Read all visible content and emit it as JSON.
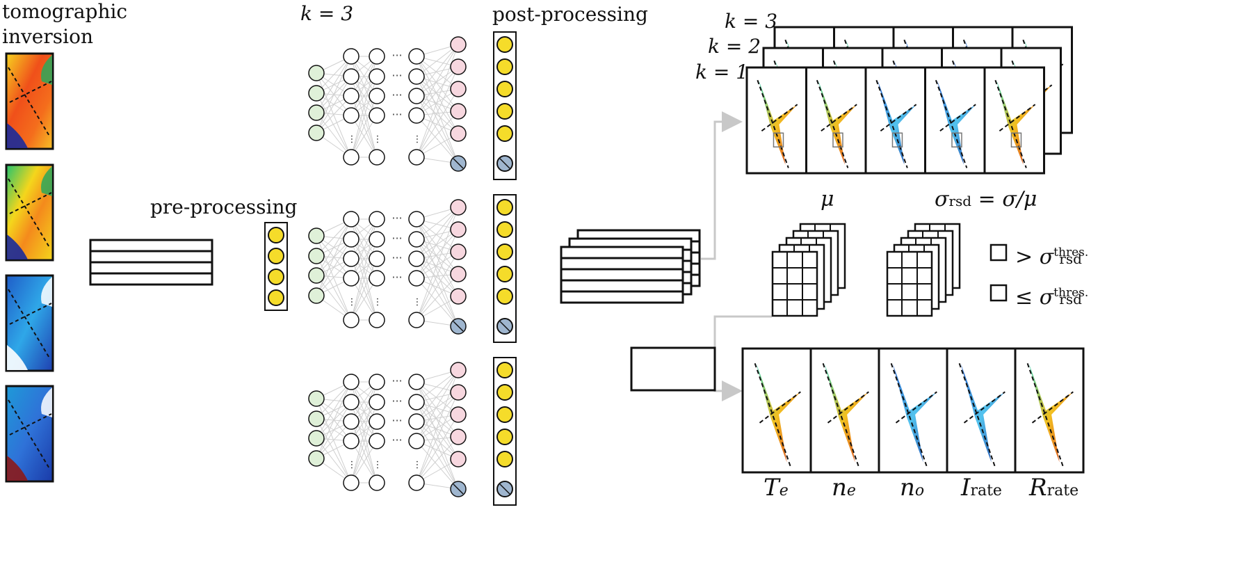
{
  "labels": {
    "tomographic": "tomographic",
    "inversion": "inversion",
    "preprocessing": "pre-processing",
    "postprocessing": "post-processing",
    "k_top": "k = 3",
    "stack_k3": "k = 3",
    "stack_k2": "k = 2",
    "stack_k1": "k = 1",
    "mu": "μ",
    "sigma_rsd": "σ",
    "sigma_rsd_sub": "rsd",
    "sigma_rsd_rest": " = σ/μ",
    "legend_gt": ">",
    "legend_le": "≤",
    "legend_sigma": "σ",
    "legend_sub": "rsd",
    "legend_sup": "thres."
  },
  "outputs": [
    {
      "sym": "T",
      "sub": "e"
    },
    {
      "sym": "n",
      "sub": "e"
    },
    {
      "sym": "n",
      "sub": "o"
    },
    {
      "sym": "I",
      "sub": "rate"
    },
    {
      "sym": "R",
      "sub": "rate"
    }
  ],
  "colors": {
    "line": "#111111",
    "gray_line": "#c8c8c8",
    "input_node": "#dff0d8",
    "hidden_node": "#ffffff",
    "output_node": "#f7d7df",
    "dropout_node": "#9fb6cf",
    "yellow_node": "#f5dc2a",
    "heat_red": "#e8321c",
    "heat_yellow": "#f4d51a",
    "heat_blue": "#1e3fa8",
    "heat_cyan": "#36b6e6"
  }
}
